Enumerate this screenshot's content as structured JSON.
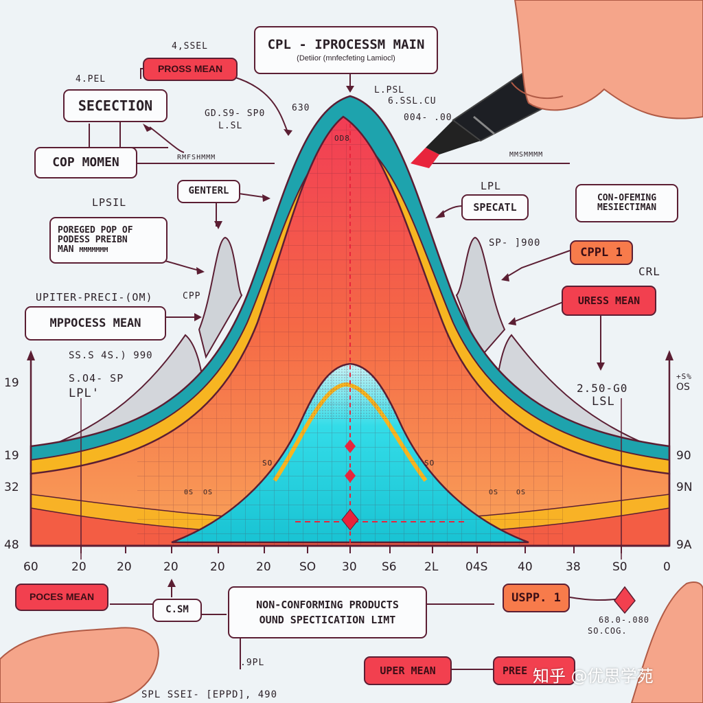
{
  "labels": {
    "title_main": "CPL - IPROCESSM MAIN",
    "title_sub": "(Detiior (mnfecfeting Lamiocl)",
    "top_scribble": "4,SSEL",
    "process_mean_top": "PROSS MEAN",
    "label_4pel": "4.PEL",
    "secection": "SECECTION",
    "cop_momen": "COP MOMEN",
    "scribble_mid1": "GD.S9- SP0",
    "lsl_top": "L.SL",
    "n630": "630",
    "lpsl_top": "L.PSL",
    "scribble_lsl_cu": "6.SSL.CU",
    "scribble_0041": "004- .00",
    "od_label": "OD8",
    "scribble_mid2": "RMFSHMMM",
    "scribble_right_top": "MMSMMMM",
    "gentral": "GENTERL",
    "lpsil": "LPSIL",
    "lpl_right": "LPL",
    "specatl": "SPECATL",
    "conforming_line1": "CON-OFEMING",
    "conforming_line2": "MESIECTIMAN",
    "forecast_line1": "POREGED POP OF",
    "forecast_line2": "PODESS PREIBN",
    "forecast_line3": "MAN",
    "forecast_scribble": "MMMMMMM",
    "sp_label": "SP- ]900",
    "cppl1": "CPPL 1",
    "crl": "CRL",
    "uress_mean": "URESS MEAN",
    "upiter": "UPITER-PRECI-(OM)",
    "cpp": "CPP",
    "mpocess": "MPPOCESS MEAN",
    "sl_scribble": "SS.S 4S.) 990",
    "s04_label": "S.O4- SP",
    "lpl_left": "LPL'",
    "n250": "2.50-G0",
    "lsl_right": "LSL",
    "left_ticks": [
      "19",
      "19",
      "32",
      "48"
    ],
    "right_ticks": [
      "OS",
      "90",
      "9N",
      "9A"
    ],
    "right_top_scribble": "+S%",
    "inner_label_left": "SO",
    "inner_label_right": "SO",
    "tiny_labels": [
      "0S",
      "OS",
      "OS",
      "OS"
    ],
    "poces_mean": "POCES MEAN",
    "csm": "C.SM",
    "nonconf_line1": "NON-CONFORMING PRODUCTS",
    "nonconf_line2": "OUND SPECTICATION LIMT",
    "uspp1": "USPP. 1",
    "n680": "68.0-.080",
    "n50cog": "SO.COG.",
    "n9pl": ".9PL",
    "bottom_scribble": "SPL SSEI- [EPPD], 490",
    "uper_mean": "UPER MEAN",
    "pree": "PREE",
    "watermark": "知乎 @优思学苑"
  },
  "x_axis": {
    "ticks": [
      "60",
      "20",
      "20",
      "20",
      "20",
      "20",
      "SO",
      "30",
      "S6",
      "2L",
      "04S",
      "40",
      "38",
      "S0",
      "0"
    ]
  },
  "colors": {
    "red": "#f2404f",
    "orange": "#f77b4b",
    "teal": "#1ea3ad",
    "yellow": "#f7b521",
    "cyan": "#2ddbe5",
    "grey": "#c9ccd2",
    "dark": "#5b1e33"
  },
  "icons": [
    "pen-icon",
    "hand-icon"
  ]
}
